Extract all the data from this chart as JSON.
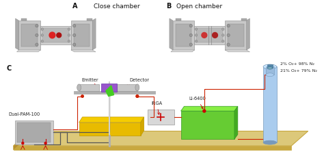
{
  "background_color": "#ffffff",
  "label_A": "A",
  "label_B": "B",
  "label_C": "C",
  "text_close": "Close chamber",
  "text_open": "Open chamber",
  "text_emitter": "Emitter",
  "text_detector": "Detector",
  "text_irga": "IRGA",
  "text_licor": "LI-6400",
  "text_dualpam": "Dual-PAM-100",
  "text_gas1": "2% O₂+ 98% N₂",
  "text_gas2": "21% O₂+ 79% N₂",
  "board_color": "#dcc87a",
  "board_edge": "#c8a840",
  "board_side_color": "#c8a840",
  "green_box_color": "#66cc33",
  "green_box_dark": "#44aa22",
  "green_box_right": "#338811",
  "yellow_top_color": "#f5cc00",
  "yellow_side_color": "#d4a800",
  "gray_device_color": "#c0c0c0",
  "gray_device_dark": "#a0a0a0",
  "gray_device_light": "#d8d8d8",
  "red_line_color": "#cc2200",
  "red_connector_color": "#cc0000",
  "dark_cable_color": "#555555",
  "blue_cyl_color": "#aaccee",
  "blue_cyl_dark": "#7799bb",
  "blue_cyl_cap": "#5588aa",
  "purple_box_color": "#9955cc",
  "green_leaf_color": "#44cc22",
  "irga_color": "#d8d8d8",
  "pam_color": "#cccccc",
  "pam_dark": "#aaaaaa",
  "white_tube": "#e8e8e8",
  "text_color": "#222222",
  "label_color": "#111111"
}
